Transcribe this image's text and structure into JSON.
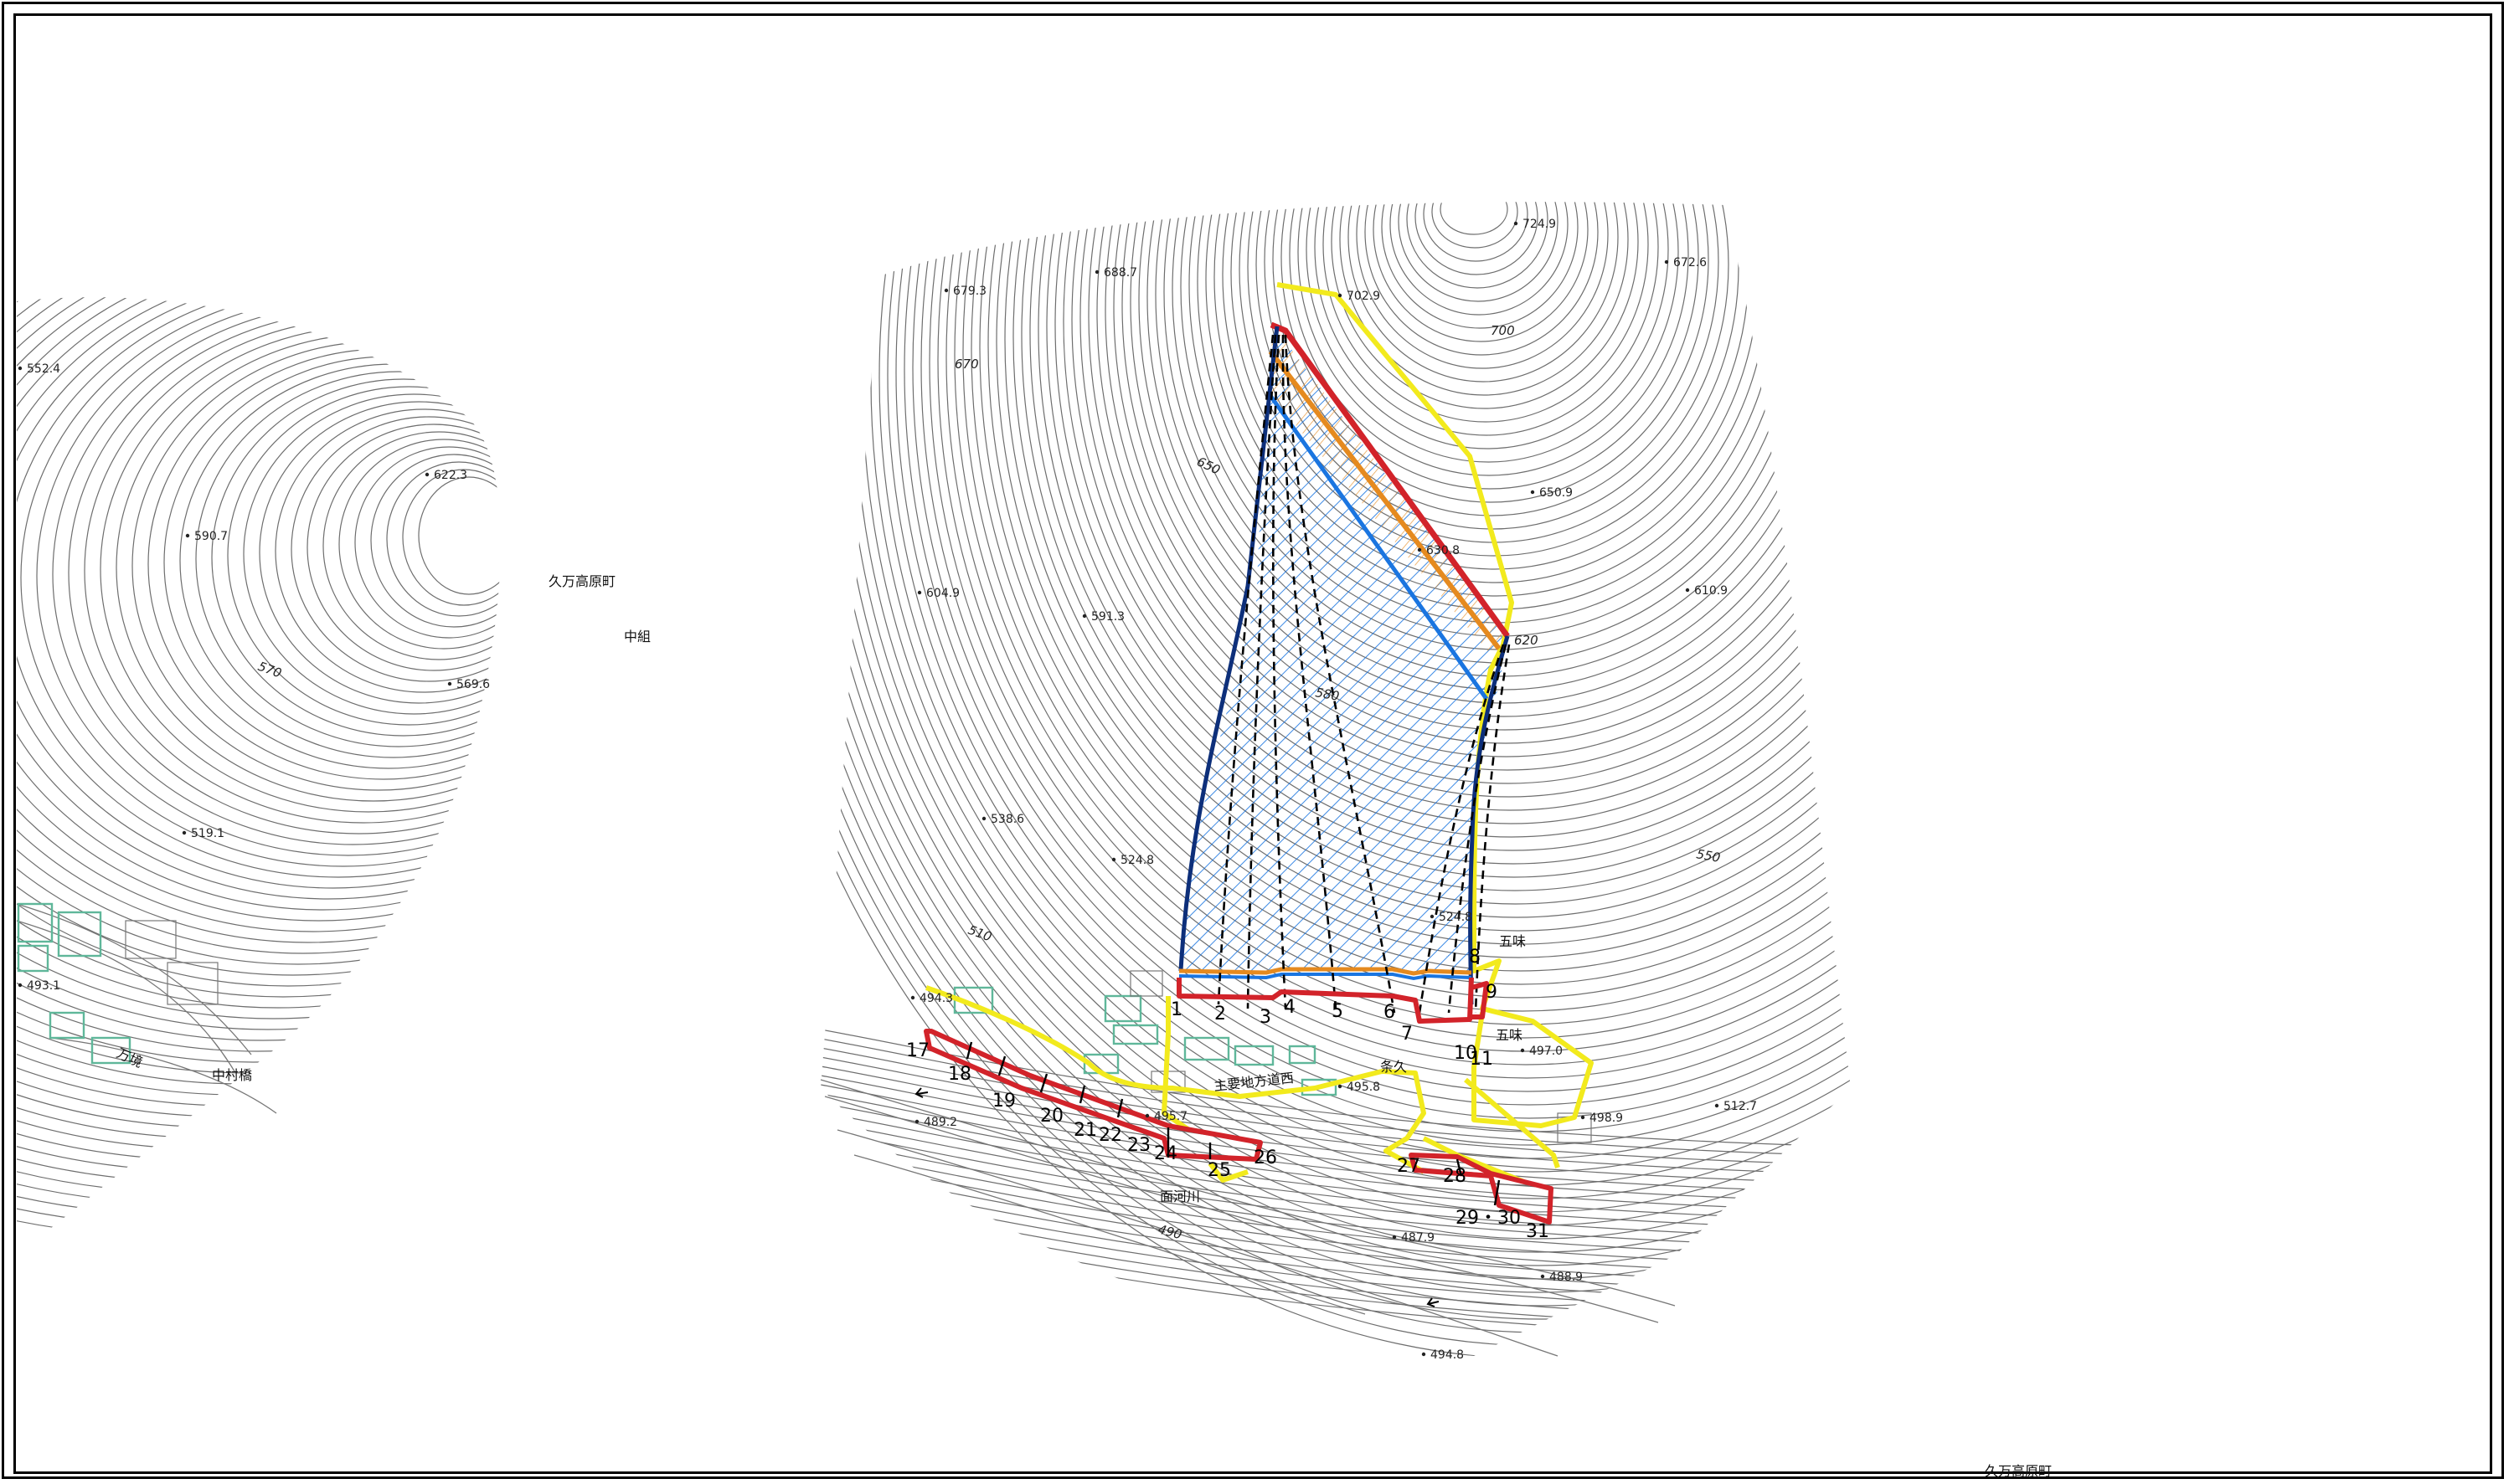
{
  "colors": {
    "contour": "#6e6e6e",
    "boundary_yellow": "#f2ea1d",
    "boundary_red": "#d2232a",
    "boundary_blue": "#1a75e0",
    "boundary_navy": "#0d2f7a",
    "boundary_orange": "#e58a1f",
    "building_green": "#5fb79a"
  },
  "place_names": {
    "kuma_kogen_top": "久万高原町",
    "nakagumi": "中組",
    "kuma_kogen_bottom": "久万高原町",
    "gomi_upper": "五味",
    "gomi_lower": "五味",
    "jouku": "条久",
    "main_road": "主要地方道西",
    "omogo_river": "面河川",
    "nakamura_bridge": "中村橋",
    "river_left": "万境"
  },
  "elevations": [
    {
      "id": "e1",
      "label": "552.4"
    },
    {
      "id": "e2",
      "label": "622.3"
    },
    {
      "id": "e3",
      "label": "590.7"
    },
    {
      "id": "e4",
      "label": "569.6"
    },
    {
      "id": "e5",
      "label": "519.1"
    },
    {
      "id": "e6",
      "label": "493.1"
    },
    {
      "id": "e7",
      "label": "679.3"
    },
    {
      "id": "e8",
      "label": "688.7"
    },
    {
      "id": "e9",
      "label": "702.9"
    },
    {
      "id": "e10",
      "label": "724.9"
    },
    {
      "id": "e11",
      "label": "672.6"
    },
    {
      "id": "e12",
      "label": "650.9"
    },
    {
      "id": "e13",
      "label": "630.8"
    },
    {
      "id": "e14",
      "label": "610.9"
    },
    {
      "id": "e15",
      "label": "604.9"
    },
    {
      "id": "e16",
      "label": "591.3"
    },
    {
      "id": "e17",
      "label": "538.6"
    },
    {
      "id": "e18",
      "label": "524.8"
    },
    {
      "id": "e19",
      "label": "524.8"
    },
    {
      "id": "e20",
      "label": "494.3"
    },
    {
      "id": "e21",
      "label": "497.0"
    },
    {
      "id": "e22",
      "label": "498.9"
    },
    {
      "id": "e23",
      "label": "512.7"
    },
    {
      "id": "e24",
      "label": "495.8"
    },
    {
      "id": "e25",
      "label": "495.7"
    },
    {
      "id": "e26",
      "label": "489.2"
    },
    {
      "id": "e27",
      "label": "487.9"
    },
    {
      "id": "e28",
      "label": "488.9"
    },
    {
      "id": "e29",
      "label": "494.8"
    }
  ],
  "contour_labels": [
    {
      "id": "c1",
      "label": "570"
    },
    {
      "id": "c2",
      "label": "670"
    },
    {
      "id": "c3",
      "label": "650"
    },
    {
      "id": "c4",
      "label": "700"
    },
    {
      "id": "c5",
      "label": "620"
    },
    {
      "id": "c6",
      "label": "580"
    },
    {
      "id": "c7",
      "label": "550"
    },
    {
      "id": "c8",
      "label": "510"
    },
    {
      "id": "c9",
      "label": "490"
    }
  ],
  "section_numbers": [
    "1",
    "2",
    "3",
    "4",
    "5",
    "6",
    "7",
    "8",
    "9",
    "10",
    "11",
    "17",
    "18",
    "19",
    "20",
    "21",
    "22",
    "23",
    "24",
    "25",
    "26",
    "27",
    "28",
    "29・30",
    "31"
  ]
}
